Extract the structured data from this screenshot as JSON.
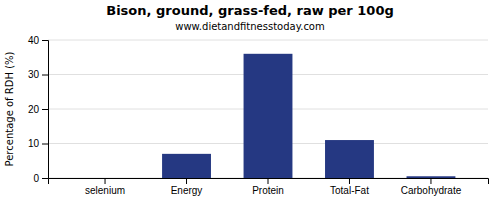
{
  "chart_data": {
    "type": "bar",
    "title": "Bison, ground, grass-fed, raw per 100g",
    "subtitle": "www.dietandfitnesstoday.com",
    "categories": [
      "selenium",
      "Energy",
      "Protein",
      "Total-Fat",
      "Carbohydrate"
    ],
    "values": [
      0,
      7,
      36,
      11,
      0.5
    ],
    "color": "#253882",
    "ylabel": "Percentage of RDH (%)",
    "ylim": [
      0,
      40
    ],
    "yticks": [
      0,
      10,
      20,
      30,
      40
    ],
    "grid": true
  }
}
